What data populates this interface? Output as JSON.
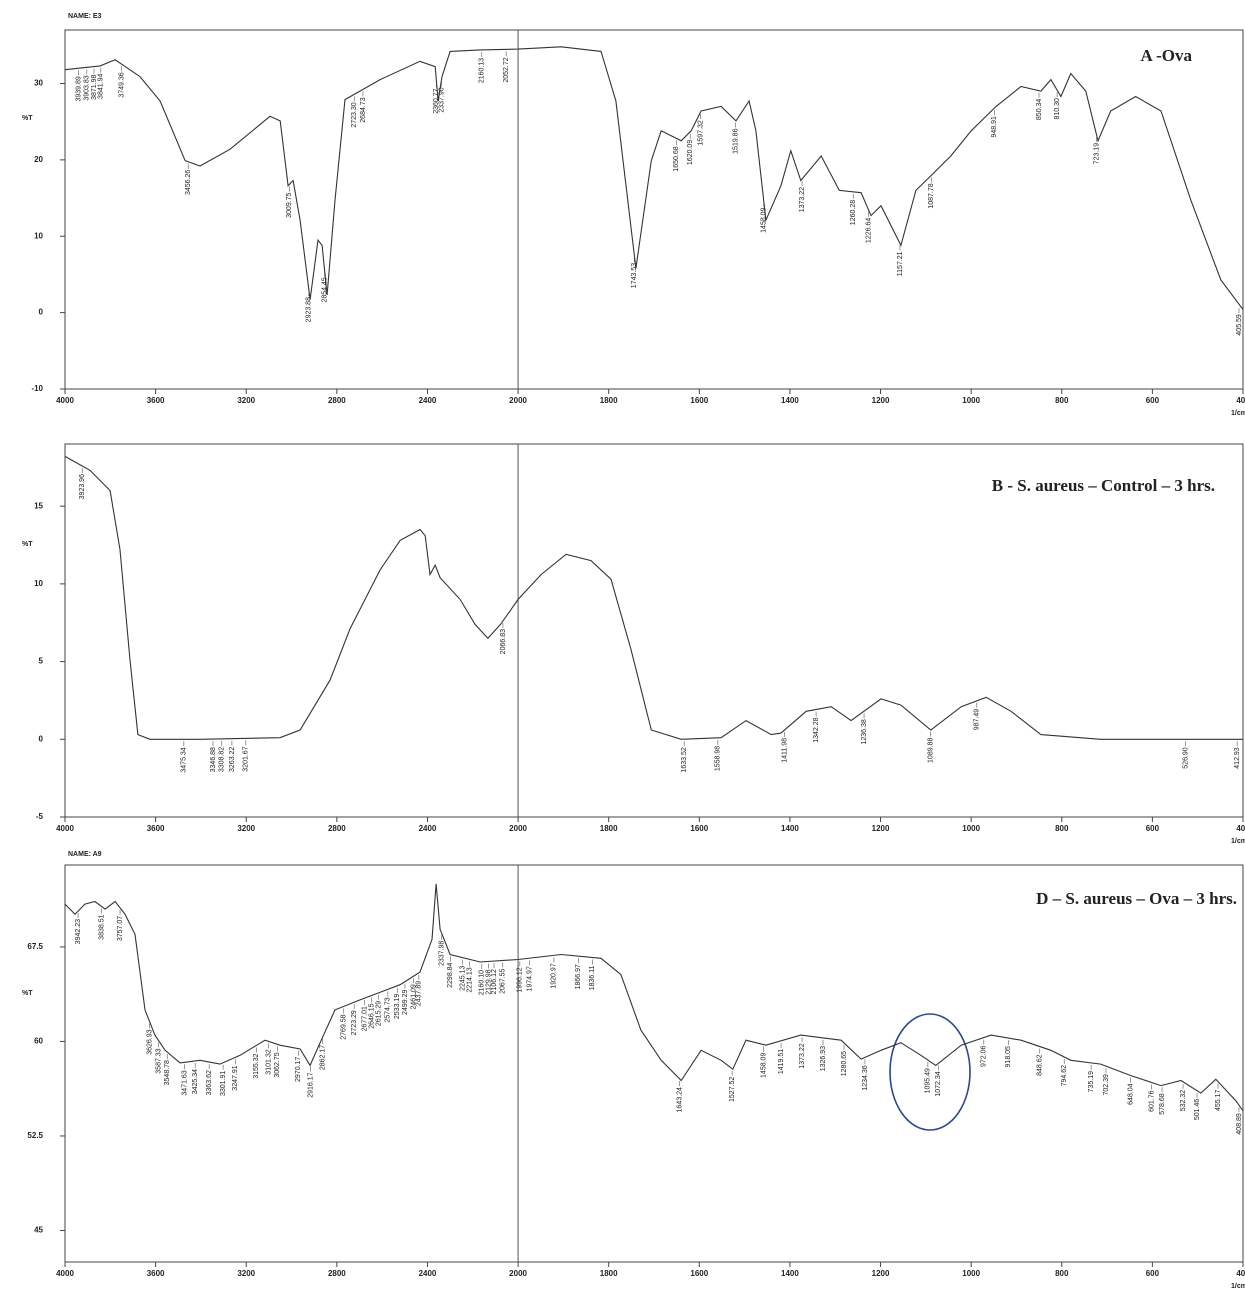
{
  "chart_data": [
    {
      "type": "line",
      "name": "NAME: E3",
      "title": "A -Ova",
      "ylabel": "%T",
      "xlabel": "1/cm",
      "color": "#333333",
      "xlim": [
        4000,
        400
      ],
      "xticks": [
        4000,
        3600,
        3200,
        2800,
        2400,
        2000,
        1800,
        1600,
        1400,
        1200,
        1000,
        800,
        600,
        400
      ],
      "ylim": [
        -10,
        37
      ],
      "yticks": [
        -10,
        0,
        10,
        20,
        30
      ],
      "x": [
        4000,
        3845,
        3779,
        3669,
        3580,
        3470,
        3404,
        3271,
        3095,
        3050,
        3015,
        2993,
        2962,
        2918,
        2883,
        2865,
        2843,
        2808,
        2764,
        2698,
        2609,
        2433,
        2366,
        2353,
        2336,
        2300,
        2167,
        2000,
        1905,
        1817,
        1784,
        1740,
        1706,
        1684,
        1640,
        1618,
        1596,
        1552,
        1519,
        1490,
        1475,
        1453,
        1420,
        1398,
        1376,
        1331,
        1291,
        1243,
        1221,
        1199,
        1155,
        1122,
        1089,
        1045,
        1000,
        945,
        890,
        846,
        824,
        802,
        780,
        747,
        720,
        692,
        637,
        581,
        515,
        449,
        400
      ],
      "values": [
        31.8,
        32.3,
        33.1,
        30.9,
        27.7,
        19.9,
        19.2,
        21.4,
        25.7,
        25.1,
        16.6,
        17.3,
        12.1,
        1.7,
        9.5,
        8.8,
        2.3,
        14.7,
        27.9,
        29.0,
        30.5,
        32.9,
        32.2,
        27.7,
        30.9,
        34.2,
        34.4,
        34.5,
        34.8,
        34.2,
        27.7,
        5.8,
        19.9,
        23.8,
        22.5,
        23.8,
        26.4,
        27.0,
        25.1,
        27.7,
        23.8,
        12.1,
        16.6,
        21.2,
        17.3,
        20.5,
        16.0,
        15.7,
        12.7,
        14.0,
        8.8,
        16.0,
        17.9,
        20.5,
        23.8,
        27.0,
        29.6,
        29.0,
        30.5,
        28.3,
        31.3,
        29.0,
        22.5,
        26.4,
        28.3,
        26.4,
        14.7,
        4.3,
        0.4
      ],
      "peaks": [
        3939.89,
        3903.83,
        3871.98,
        3841.94,
        3749.36,
        3456.26,
        3009.75,
        2923.88,
        2854.45,
        {
          "value": 2723.3,
          "label": "2723.30"
        },
        2684.73,
        2360.77,
        {
          "value": 2337.9,
          "label": "2337.90"
        },
        2160.13,
        2052.72,
        1743.53,
        1650.68,
        1620.09,
        1597.32,
        1519.86,
        1458.09,
        1373.22,
        1260.28,
        1226.64,
        1157.21,
        1087.78,
        948.91,
        850.34,
        {
          "value": 810.3,
          "label": "810.30"
        },
        723.19,
        405.59
      ]
    },
    {
      "type": "line",
      "title": "B - S. aureus – Control – 3 hrs.",
      "ylabel": "%T",
      "xlabel": "1/cm",
      "color": "#333333",
      "xlim": [
        4000,
        400
      ],
      "xticks": [
        4000,
        3600,
        3200,
        2800,
        2400,
        2000,
        1800,
        1600,
        1400,
        1200,
        1000,
        800,
        600,
        400
      ],
      "ylim": [
        -5,
        19
      ],
      "yticks": [
        -5,
        0,
        5,
        10,
        15
      ],
      "x": [
        4000,
        3889,
        3801,
        3757,
        3713,
        3678,
        3625,
        3404,
        3051,
        2962,
        2830,
        2742,
        2609,
        2521,
        2433,
        2410,
        2389,
        2366,
        2344,
        2256,
        2190,
        2133,
        2077,
        2000,
        1949,
        1894,
        1839,
        1795,
        1751,
        1706,
        1640,
        1552,
        1497,
        1441,
        1420,
        1364,
        1309,
        1265,
        1199,
        1155,
        1089,
        1022,
        967,
        912,
        846,
        714,
        400
      ],
      "values": [
        18.2,
        17.3,
        16.0,
        12.2,
        5.1,
        0.3,
        0,
        0,
        0.1,
        0.6,
        3.8,
        7.1,
        10.9,
        12.8,
        13.5,
        13.1,
        10.6,
        11.2,
        10.4,
        9.0,
        7.4,
        6.5,
        7.4,
        9.0,
        10.6,
        11.9,
        11.5,
        10.3,
        5.8,
        0.6,
        0,
        0.1,
        1.2,
        0.3,
        0.4,
        1.8,
        2.1,
        1.2,
        2.6,
        2.2,
        0.6,
        2.1,
        2.7,
        1.8,
        0.3,
        0,
        0
      ],
      "peaks": [
        3923.96,
        3475.34,
        3346.88,
        3308.82,
        3263.22,
        3201.67,
        2066.83,
        1633.52,
        1558.98,
        1411.98,
        1342.28,
        1236.38,
        1089.88,
        987.49,
        {
          "value": 526.9,
          "label": "526.90"
        },
        412.93
      ]
    },
    {
      "type": "line",
      "name": "NAME: A9",
      "title": "D – S. aureus – Ova – 3 hrs.",
      "ylabel": "%T",
      "xlabel": "1/cm",
      "color": "#333333",
      "xlim": [
        4000,
        400
      ],
      "xticks": [
        4000,
        3600,
        3200,
        2800,
        2400,
        2000,
        1800,
        1600,
        1400,
        1200,
        1000,
        800,
        600,
        400
      ],
      "ylim": [
        42.5,
        74
      ],
      "yticks": [
        45,
        52.5,
        60,
        67.5
      ],
      "x": [
        4000,
        3956,
        3912,
        3868,
        3823,
        3779,
        3735,
        3691,
        3647,
        3603,
        3558,
        3492,
        3404,
        3316,
        3227,
        3117,
        3051,
        2962,
        2918,
        2874,
        2808,
        2698,
        2521,
        2433,
        2380,
        2362,
        2344,
        2300,
        2167,
        2000,
        1905,
        1817,
        1773,
        1729,
        1684,
        1640,
        1596,
        1552,
        1526,
        1497,
        1453,
        1376,
        1287,
        1243,
        1199,
        1155,
        1111,
        1078,
        1022,
        956,
        890,
        824,
        780,
        714,
        648,
        581,
        537,
        493,
        460,
        416,
        400
      ],
      "values": [
        70.9,
        70.1,
        70.9,
        71.1,
        70.5,
        71.1,
        70.1,
        68.5,
        62.5,
        60.5,
        59.3,
        58.3,
        58.5,
        58.2,
        58.9,
        60.1,
        59.7,
        59.4,
        58.1,
        59.9,
        62.5,
        63.3,
        64.5,
        65.5,
        68.1,
        72.5,
        68.9,
        66.9,
        66.3,
        66.5,
        66.9,
        66.6,
        65.3,
        60.9,
        58.5,
        56.9,
        59.3,
        58.5,
        57.8,
        60.1,
        59.7,
        60.5,
        60.1,
        58.6,
        59.3,
        59.9,
        58.9,
        58.1,
        59.7,
        60.5,
        60.1,
        59.3,
        58.5,
        58.2,
        57.3,
        56.5,
        56.9,
        55.9,
        57.0,
        55.3,
        54.5
      ],
      "peaks": [
        3942.23,
        3838.51,
        3757.07,
        3626.93,
        3587.33,
        3548.78,
        3471.63,
        3425.34,
        3363.62,
        3301.91,
        3247.91,
        3155.32,
        3101.32,
        3062.75,
        2970.17,
        2916.17,
        2862.17,
        2769.58,
        2723.29,
        2677.01,
        2646.15,
        2615.29,
        2574.73,
        2533.19,
        2499.29,
        2461.09,
        2437.89,
        2337.98,
        2298.84,
        2245.13,
        2214.13,
        {
          "value": 2160.1,
          "label": "2160.10"
        },
        2129.98,
        2106.12,
        2067.55,
        1996.12,
        1974.97,
        1920.97,
        1866.97,
        1836.11,
        1643.24,
        1527.52,
        1458.09,
        1419.51,
        1373.22,
        1326.93,
        1280.65,
        1234.36,
        1095.49,
        1072.34,
        972.06,
        918.05,
        848.62,
        794.62,
        735.19,
        702.39,
        648.04,
        601.76,
        578.68,
        532.32,
        501.46,
        455.17,
        408.89
      ]
    }
  ]
}
